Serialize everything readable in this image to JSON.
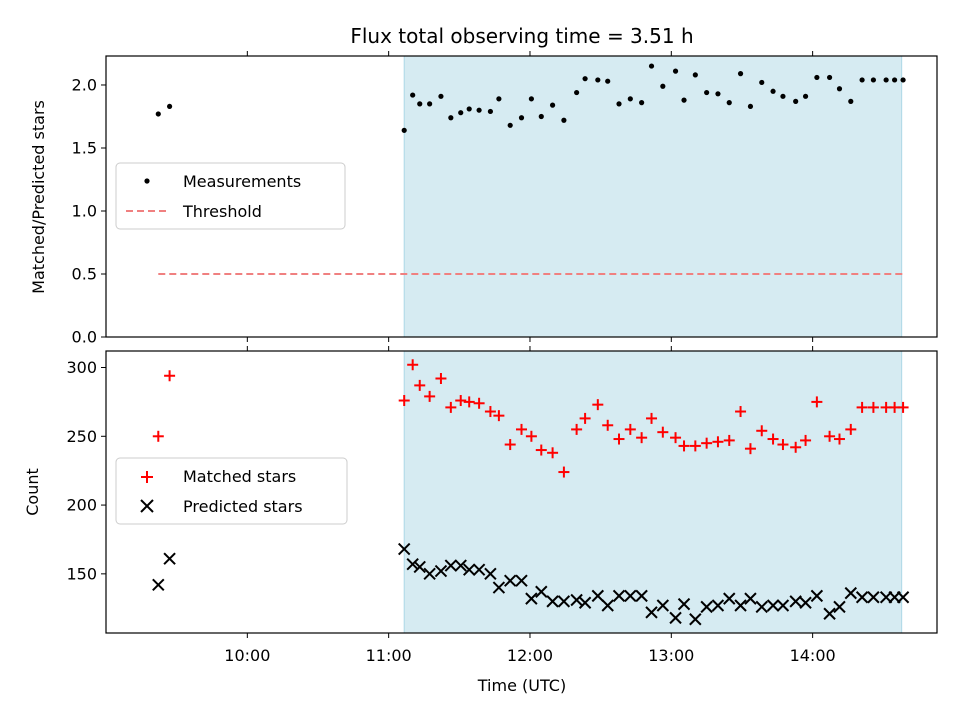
{
  "chart_data": {
    "title": "Flux total observing time = 3.51 h",
    "xlabel": "Time (UTC)",
    "x_tick_labels": [
      "10:00",
      "11:00",
      "12:00",
      "13:00",
      "14:00"
    ],
    "x_ticks_hours": [
      10,
      11,
      12,
      13,
      14
    ],
    "xlim_hours": [
      9.0,
      14.88
    ],
    "shaded_interval_hours": [
      11.11,
      14.63
    ],
    "colors": {
      "shade": "#add8e6",
      "measurements": "#000000",
      "threshold": "#f08080",
      "matched": "#ff0000",
      "predicted": "#000000"
    },
    "panels": [
      {
        "type": "scatter",
        "ylabel": "Matched/Predicted stars",
        "ylim": [
          0,
          2.23
        ],
        "y_ticks": [
          0.0,
          0.5,
          1.0,
          1.5,
          2.0
        ],
        "y_tick_labels": [
          "0.0",
          "0.5",
          "1.0",
          "1.5",
          "2.0"
        ],
        "legend_position": "center-left",
        "series": [
          {
            "name": "Measurements",
            "marker": "dot",
            "x": [
              9.37,
              9.45,
              11.11,
              11.17,
              11.22,
              11.29,
              11.37,
              11.44,
              11.51,
              11.57,
              11.64,
              11.72,
              11.78,
              11.86,
              11.94,
              12.01,
              12.08,
              12.16,
              12.24,
              12.33,
              12.39,
              12.48,
              12.55,
              12.63,
              12.71,
              12.79,
              12.86,
              12.94,
              13.03,
              13.09,
              13.17,
              13.25,
              13.33,
              13.41,
              13.49,
              13.56,
              13.64,
              13.72,
              13.79,
              13.88,
              13.95,
              14.03,
              14.12,
              14.19,
              14.27,
              14.35,
              14.43,
              14.52,
              14.58,
              14.64
            ],
            "y": [
              1.77,
              1.83,
              1.64,
              1.92,
              1.85,
              1.85,
              1.91,
              1.74,
              1.78,
              1.81,
              1.8,
              1.79,
              1.89,
              1.68,
              1.74,
              1.89,
              1.75,
              1.84,
              1.72,
              1.94,
              2.05,
              2.04,
              2.03,
              1.85,
              1.89,
              1.86,
              2.15,
              1.99,
              2.11,
              1.88,
              2.08,
              1.94,
              1.93,
              1.86,
              2.09,
              1.83,
              2.02,
              1.95,
              1.91,
              1.87,
              1.91,
              2.06,
              2.06,
              1.97,
              1.87,
              2.04,
              2.04,
              2.04,
              2.04,
              2.04
            ]
          },
          {
            "name": "Threshold",
            "marker": "dashed-line",
            "x": [
              9.37,
              14.64
            ],
            "y": [
              0.5,
              0.5
            ]
          }
        ]
      },
      {
        "type": "scatter",
        "ylabel": "Count",
        "ylim": [
          107,
          312
        ],
        "y_ticks": [
          150,
          200,
          250,
          300
        ],
        "y_tick_labels": [
          "150",
          "200",
          "250",
          "300"
        ],
        "legend_position": "center-left",
        "series": [
          {
            "name": "Matched stars",
            "marker": "plus",
            "x": [
              9.37,
              9.45,
              11.11,
              11.17,
              11.22,
              11.29,
              11.37,
              11.44,
              11.51,
              11.57,
              11.64,
              11.72,
              11.78,
              11.86,
              11.94,
              12.01,
              12.08,
              12.16,
              12.24,
              12.33,
              12.39,
              12.48,
              12.55,
              12.63,
              12.71,
              12.79,
              12.86,
              12.94,
              13.03,
              13.09,
              13.17,
              13.25,
              13.33,
              13.41,
              13.49,
              13.56,
              13.64,
              13.72,
              13.79,
              13.88,
              13.95,
              14.03,
              14.12,
              14.19,
              14.27,
              14.35,
              14.43,
              14.52,
              14.58,
              14.64
            ],
            "y": [
              250,
              294,
              276,
              302,
              287,
              279,
              292,
              271,
              276,
              275,
              274,
              268,
              265,
              244,
              255,
              250,
              240,
              238,
              224,
              255,
              263,
              273,
              258,
              248,
              255,
              249,
              263,
              253,
              249,
              243,
              243,
              245,
              246,
              247,
              268,
              241,
              254,
              248,
              244,
              242,
              247,
              275,
              250,
              248,
              255,
              271,
              271,
              271,
              271,
              271
            ]
          },
          {
            "name": "Predicted stars",
            "marker": "x",
            "x": [
              9.37,
              9.45,
              11.11,
              11.17,
              11.22,
              11.29,
              11.37,
              11.44,
              11.51,
              11.57,
              11.64,
              11.72,
              11.78,
              11.86,
              11.94,
              12.01,
              12.08,
              12.16,
              12.24,
              12.33,
              12.39,
              12.48,
              12.55,
              12.63,
              12.71,
              12.79,
              12.86,
              12.94,
              13.03,
              13.09,
              13.17,
              13.25,
              13.33,
              13.41,
              13.49,
              13.56,
              13.64,
              13.72,
              13.79,
              13.88,
              13.95,
              14.03,
              14.12,
              14.19,
              14.27,
              14.35,
              14.43,
              14.52,
              14.58,
              14.64
            ],
            "y": [
              142,
              161,
              168,
              157,
              155,
              150,
              152,
              156,
              156,
              153,
              153,
              150,
              140,
              145,
              145,
              132,
              137,
              130,
              130,
              131,
              129,
              134,
              127,
              134,
              134,
              134,
              122,
              127,
              118,
              128,
              117,
              126,
              127,
              132,
              127,
              132,
              126,
              127,
              127,
              130,
              129,
              134,
              121,
              126,
              136,
              133,
              133,
              133,
              133,
              133
            ]
          }
        ]
      }
    ]
  }
}
